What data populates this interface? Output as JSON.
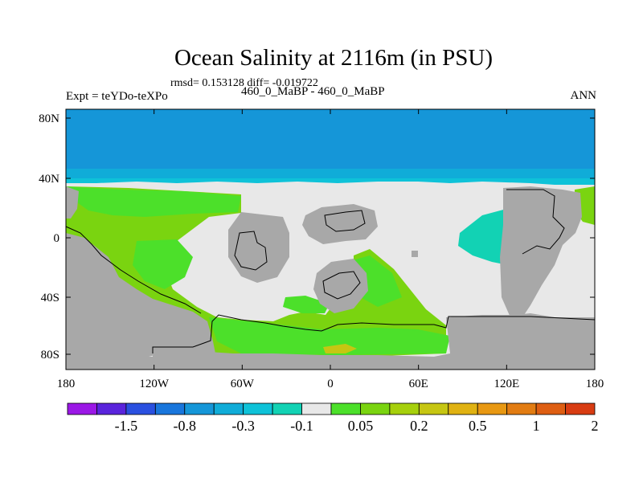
{
  "title": "Ocean Salinity at 2116m (in PSU)",
  "stats_line": "rmsd= 0.153128 diff= -0.019722",
  "experiment_label": "Expt = teYDo-teXPo",
  "subtitle": "460_0_MaBP - 460_0_MaBP",
  "season": "ANN",
  "x_axis_ticks": [
    "180",
    "120W",
    "60W",
    "0",
    "60E",
    "120E",
    "180"
  ],
  "y_axis_ticks": [
    "80N",
    "40N",
    "0",
    "40S",
    "80S"
  ],
  "colorbar": {
    "colors": [
      "#9b18e6",
      "#5a24dc",
      "#2a50e0",
      "#1976dc",
      "#1596d8",
      "#10acd8",
      "#0ec2d8",
      "#12d2b4",
      "#e8e8e8",
      "#4ce02a",
      "#7ad410",
      "#a6d00c",
      "#c6c612",
      "#e0b212",
      "#e89812",
      "#e27c12",
      "#de5e12",
      "#d83c12"
    ],
    "labels": [
      "-1.5",
      "-0.8",
      "-0.3",
      "-0.1",
      "0.05",
      "0.2",
      "0.5",
      "1",
      "2"
    ]
  },
  "colors": {
    "land": "#a8a8a8",
    "ocean_neutral": "#e8e8e8",
    "north_cap": "#1596d8",
    "north_band": "#10acd8",
    "edge_band": "#0ec2d8",
    "teal": "#12d2b4",
    "green_light": "#7ad410",
    "green_bright": "#4ce02a",
    "yellow_spot": "#c6c612",
    "coast": "#000000"
  }
}
